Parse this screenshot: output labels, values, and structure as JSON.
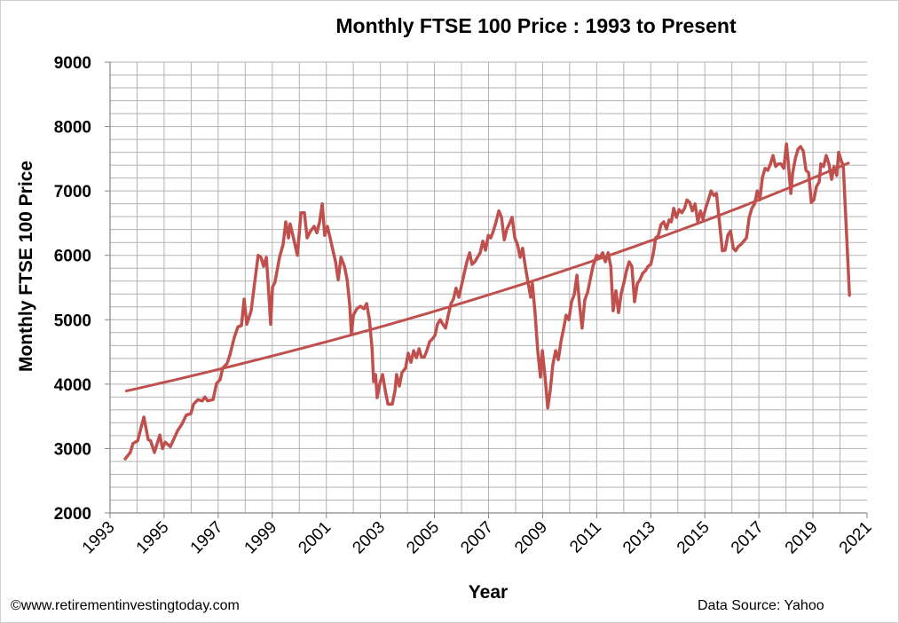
{
  "chart_data": {
    "type": "line",
    "title": "Monthly  FTSE 100 Price : 1993 to Present",
    "xlabel": "Year",
    "ylabel": "Monthly FTSE 100 Price",
    "xlim": [
      1993,
      2021
    ],
    "ylim": [
      2000,
      9000
    ],
    "x_ticks": [
      "1993",
      "1995",
      "1997",
      "1999",
      "2001",
      "2003",
      "2005",
      "2007",
      "2009",
      "2011",
      "2013",
      "2015",
      "2017",
      "2019",
      "2021"
    ],
    "y_ticks": [
      "2000",
      "3000",
      "4000",
      "5000",
      "6000",
      "7000",
      "8000",
      "9000"
    ],
    "grid": true,
    "line_color": "#C0504D",
    "series": [
      {
        "points": [
          [
            1993.56,
            2840
          ],
          [
            1993.75,
            2940
          ],
          [
            1993.85,
            3080
          ],
          [
            1994.02,
            3120
          ],
          [
            1994.25,
            3490
          ],
          [
            1994.41,
            3140
          ],
          [
            1994.5,
            3120
          ],
          [
            1994.64,
            2940
          ],
          [
            1994.84,
            3210
          ],
          [
            1994.94,
            3000
          ],
          [
            1995.04,
            3100
          ],
          [
            1995.23,
            3030
          ],
          [
            1995.5,
            3280
          ],
          [
            1995.66,
            3380
          ],
          [
            1995.82,
            3520
          ],
          [
            1995.99,
            3540
          ],
          [
            1996.09,
            3690
          ],
          [
            1996.25,
            3760
          ],
          [
            1996.41,
            3740
          ],
          [
            1996.51,
            3800
          ],
          [
            1996.61,
            3740
          ],
          [
            1996.81,
            3760
          ],
          [
            1996.94,
            4010
          ],
          [
            1997.07,
            4070
          ],
          [
            1997.17,
            4250
          ],
          [
            1997.33,
            4320
          ],
          [
            1997.43,
            4450
          ],
          [
            1997.6,
            4730
          ],
          [
            1997.73,
            4890
          ],
          [
            1997.86,
            4910
          ],
          [
            1997.96,
            5320
          ],
          [
            1998.06,
            4930
          ],
          [
            1998.22,
            5140
          ],
          [
            1998.35,
            5580
          ],
          [
            1998.48,
            6000
          ],
          [
            1998.58,
            5970
          ],
          [
            1998.68,
            5830
          ],
          [
            1998.78,
            5970
          ],
          [
            1998.84,
            5620
          ],
          [
            1998.94,
            4930
          ],
          [
            1999.01,
            5510
          ],
          [
            1999.1,
            5580
          ],
          [
            1999.27,
            5970
          ],
          [
            1999.4,
            6170
          ],
          [
            1999.5,
            6520
          ],
          [
            1999.6,
            6270
          ],
          [
            1999.66,
            6490
          ],
          [
            1999.8,
            6240
          ],
          [
            1999.93,
            6000
          ],
          [
            2000.06,
            6660
          ],
          [
            2000.19,
            6660
          ],
          [
            2000.29,
            6270
          ],
          [
            2000.42,
            6380
          ],
          [
            2000.55,
            6450
          ],
          [
            2000.65,
            6350
          ],
          [
            2000.75,
            6520
          ],
          [
            2000.85,
            6800
          ],
          [
            2000.94,
            6310
          ],
          [
            2001.04,
            6450
          ],
          [
            2001.14,
            6270
          ],
          [
            2001.34,
            5900
          ],
          [
            2001.44,
            5620
          ],
          [
            2001.54,
            5970
          ],
          [
            2001.67,
            5830
          ],
          [
            2001.77,
            5620
          ],
          [
            2001.87,
            5210
          ],
          [
            2001.93,
            4770
          ],
          [
            2002.0,
            5070
          ],
          [
            2002.13,
            5170
          ],
          [
            2002.26,
            5210
          ],
          [
            2002.39,
            5170
          ],
          [
            2002.49,
            5250
          ],
          [
            2002.59,
            5010
          ],
          [
            2002.69,
            4560
          ],
          [
            2002.75,
            4040
          ],
          [
            2002.82,
            4150
          ],
          [
            2002.88,
            3790
          ],
          [
            2002.98,
            4010
          ],
          [
            2003.08,
            4150
          ],
          [
            2003.18,
            3900
          ],
          [
            2003.28,
            3690
          ],
          [
            2003.44,
            3690
          ],
          [
            2003.54,
            3900
          ],
          [
            2003.6,
            4150
          ],
          [
            2003.7,
            3970
          ],
          [
            2003.8,
            4180
          ],
          [
            2003.93,
            4250
          ],
          [
            2004.03,
            4480
          ],
          [
            2004.13,
            4340
          ],
          [
            2004.23,
            4520
          ],
          [
            2004.33,
            4410
          ],
          [
            2004.43,
            4550
          ],
          [
            2004.52,
            4420
          ],
          [
            2004.62,
            4420
          ],
          [
            2004.72,
            4520
          ],
          [
            2004.82,
            4660
          ],
          [
            2004.92,
            4700
          ],
          [
            2005.02,
            4760
          ],
          [
            2005.11,
            4930
          ],
          [
            2005.21,
            5000
          ],
          [
            2005.31,
            4930
          ],
          [
            2005.41,
            4870
          ],
          [
            2005.51,
            5070
          ],
          [
            2005.61,
            5250
          ],
          [
            2005.7,
            5320
          ],
          [
            2005.8,
            5490
          ],
          [
            2005.9,
            5350
          ],
          [
            2006.0,
            5530
          ],
          [
            2006.1,
            5720
          ],
          [
            2006.2,
            5900
          ],
          [
            2006.3,
            6040
          ],
          [
            2006.39,
            5860
          ],
          [
            2006.49,
            5900
          ],
          [
            2006.59,
            5970
          ],
          [
            2006.69,
            6040
          ],
          [
            2006.79,
            6220
          ],
          [
            2006.89,
            6080
          ],
          [
            2006.99,
            6310
          ],
          [
            2007.08,
            6270
          ],
          [
            2007.18,
            6380
          ],
          [
            2007.28,
            6520
          ],
          [
            2007.38,
            6690
          ],
          [
            2007.48,
            6590
          ],
          [
            2007.58,
            6240
          ],
          [
            2007.68,
            6410
          ],
          [
            2007.77,
            6490
          ],
          [
            2007.87,
            6590
          ],
          [
            2007.97,
            6270
          ],
          [
            2008.07,
            6170
          ],
          [
            2008.17,
            5970
          ],
          [
            2008.26,
            6110
          ],
          [
            2008.36,
            5830
          ],
          [
            2008.46,
            5580
          ],
          [
            2008.56,
            5350
          ],
          [
            2008.62,
            5560
          ],
          [
            2008.72,
            5110
          ],
          [
            2008.82,
            4520
          ],
          [
            2008.92,
            4110
          ],
          [
            2008.99,
            4520
          ],
          [
            2009.09,
            4110
          ],
          [
            2009.19,
            3630
          ],
          [
            2009.28,
            3900
          ],
          [
            2009.38,
            4310
          ],
          [
            2009.48,
            4520
          ],
          [
            2009.58,
            4380
          ],
          [
            2009.68,
            4660
          ],
          [
            2009.78,
            4870
          ],
          [
            2009.87,
            5070
          ],
          [
            2009.97,
            5000
          ],
          [
            2010.07,
            5280
          ],
          [
            2010.17,
            5390
          ],
          [
            2010.27,
            5690
          ],
          [
            2010.37,
            5210
          ],
          [
            2010.46,
            4870
          ],
          [
            2010.56,
            5310
          ],
          [
            2010.66,
            5420
          ],
          [
            2010.76,
            5620
          ],
          [
            2010.86,
            5830
          ],
          [
            2011.0,
            6000
          ],
          [
            2011.12,
            5970
          ],
          [
            2011.22,
            6040
          ],
          [
            2011.32,
            5900
          ],
          [
            2011.42,
            6040
          ],
          [
            2011.52,
            5830
          ],
          [
            2011.61,
            5140
          ],
          [
            2011.71,
            5450
          ],
          [
            2011.81,
            5110
          ],
          [
            2011.91,
            5420
          ],
          [
            2012.0,
            5560
          ],
          [
            2012.1,
            5760
          ],
          [
            2012.2,
            5900
          ],
          [
            2012.3,
            5830
          ],
          [
            2012.4,
            5280
          ],
          [
            2012.5,
            5560
          ],
          [
            2012.6,
            5620
          ],
          [
            2012.7,
            5720
          ],
          [
            2012.8,
            5760
          ],
          [
            2012.9,
            5830
          ],
          [
            2013.0,
            5860
          ],
          [
            2013.1,
            6040
          ],
          [
            2013.18,
            6270
          ],
          [
            2013.28,
            6310
          ],
          [
            2013.38,
            6480
          ],
          [
            2013.48,
            6520
          ],
          [
            2013.58,
            6410
          ],
          [
            2013.68,
            6550
          ],
          [
            2013.76,
            6520
          ],
          [
            2013.85,
            6730
          ],
          [
            2013.95,
            6590
          ],
          [
            2014.05,
            6710
          ],
          [
            2014.15,
            6660
          ],
          [
            2014.25,
            6730
          ],
          [
            2014.34,
            6860
          ],
          [
            2014.44,
            6820
          ],
          [
            2014.54,
            6690
          ],
          [
            2014.64,
            6800
          ],
          [
            2014.74,
            6520
          ],
          [
            2014.84,
            6690
          ],
          [
            2014.93,
            6560
          ],
          [
            2015.03,
            6730
          ],
          [
            2015.13,
            6860
          ],
          [
            2015.23,
            7000
          ],
          [
            2015.33,
            6930
          ],
          [
            2015.43,
            6960
          ],
          [
            2015.52,
            6590
          ],
          [
            2015.65,
            6070
          ],
          [
            2015.75,
            6080
          ],
          [
            2015.85,
            6310
          ],
          [
            2015.95,
            6380
          ],
          [
            2016.05,
            6110
          ],
          [
            2016.14,
            6070
          ],
          [
            2016.24,
            6140
          ],
          [
            2016.34,
            6170
          ],
          [
            2016.44,
            6220
          ],
          [
            2016.54,
            6270
          ],
          [
            2016.64,
            6590
          ],
          [
            2016.74,
            6730
          ],
          [
            2016.84,
            6800
          ],
          [
            2016.94,
            7000
          ],
          [
            2017.03,
            6860
          ],
          [
            2017.13,
            7210
          ],
          [
            2017.23,
            7350
          ],
          [
            2017.33,
            7320
          ],
          [
            2017.43,
            7420
          ],
          [
            2017.52,
            7550
          ],
          [
            2017.62,
            7380
          ],
          [
            2017.72,
            7420
          ],
          [
            2017.82,
            7420
          ],
          [
            2017.92,
            7350
          ],
          [
            2018.02,
            7730
          ],
          [
            2018.08,
            7480
          ],
          [
            2018.18,
            6960
          ],
          [
            2018.25,
            7280
          ],
          [
            2018.35,
            7510
          ],
          [
            2018.45,
            7650
          ],
          [
            2018.54,
            7690
          ],
          [
            2018.64,
            7620
          ],
          [
            2018.74,
            7320
          ],
          [
            2018.84,
            7280
          ],
          [
            2018.94,
            6820
          ],
          [
            2019.03,
            6860
          ],
          [
            2019.13,
            7070
          ],
          [
            2019.23,
            7140
          ],
          [
            2019.29,
            7420
          ],
          [
            2019.39,
            7380
          ],
          [
            2019.49,
            7550
          ],
          [
            2019.59,
            7420
          ],
          [
            2019.69,
            7180
          ],
          [
            2019.78,
            7380
          ],
          [
            2019.88,
            7240
          ],
          [
            2019.95,
            7600
          ],
          [
            2020.05,
            7460
          ],
          [
            2020.12,
            7400
          ],
          [
            2020.35,
            5380
          ]
        ]
      }
    ],
    "trendline": {
      "type": "exponential",
      "start": [
        1993.56,
        3890
      ],
      "end": [
        2020.35,
        7440
      ]
    }
  },
  "footer": {
    "copyright": "©www.retirementinvestingtoday.com",
    "source": "Data Source: Yahoo"
  }
}
